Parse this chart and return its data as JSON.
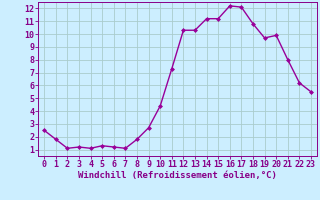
{
  "x": [
    0,
    1,
    2,
    3,
    4,
    5,
    6,
    7,
    8,
    9,
    10,
    11,
    12,
    13,
    14,
    15,
    16,
    17,
    18,
    19,
    20,
    21,
    22,
    23
  ],
  "y": [
    2.5,
    1.8,
    1.1,
    1.2,
    1.1,
    1.3,
    1.2,
    1.1,
    1.8,
    2.7,
    4.4,
    7.3,
    10.3,
    10.3,
    11.2,
    11.2,
    12.2,
    12.1,
    10.8,
    9.7,
    9.9,
    8.0,
    6.2,
    5.5
  ],
  "line_color": "#990099",
  "marker": "D",
  "marker_size": 2.0,
  "bg_color": "#cceeff",
  "grid_color": "#aacccc",
  "xlabel": "Windchill (Refroidissement éolien,°C)",
  "xlim": [
    -0.5,
    23.5
  ],
  "ylim": [
    0.5,
    12.5
  ],
  "xticks": [
    0,
    1,
    2,
    3,
    4,
    5,
    6,
    7,
    8,
    9,
    10,
    11,
    12,
    13,
    14,
    15,
    16,
    17,
    18,
    19,
    20,
    21,
    22,
    23
  ],
  "yticks": [
    1,
    2,
    3,
    4,
    5,
    6,
    7,
    8,
    9,
    10,
    11,
    12
  ],
  "xlabel_fontsize": 6.5,
  "tick_fontsize": 6.0,
  "line_width": 1.0,
  "axis_color": "#880088"
}
